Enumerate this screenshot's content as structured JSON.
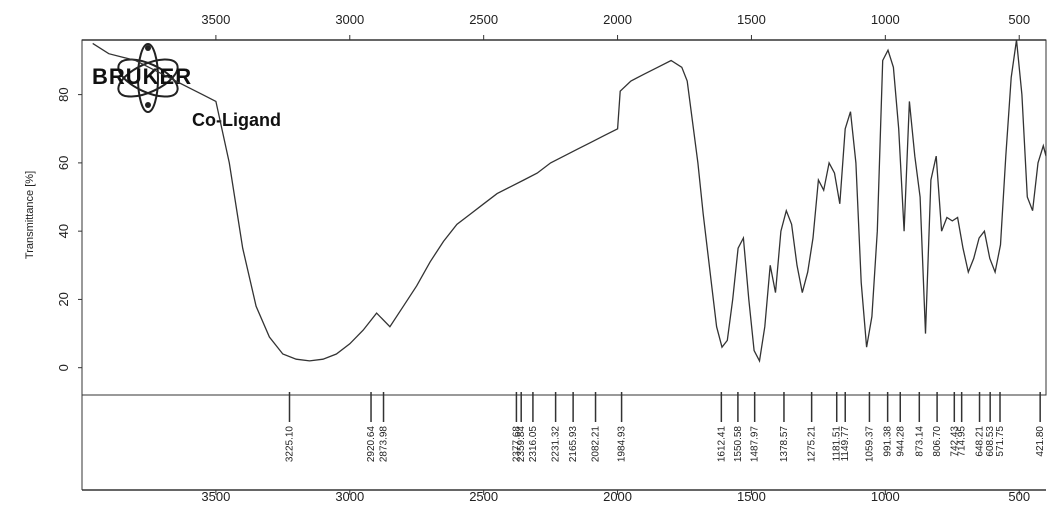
{
  "logo": {
    "text": "BRUKER"
  },
  "sample_label": "Co-Ligand",
  "chart_data": {
    "type": "line",
    "title": "",
    "xlabel": "",
    "ylabel": "Transmittance [%]",
    "x_reversed": true,
    "xlim": [
      4000,
      400
    ],
    "ylim": [
      -8,
      96
    ],
    "x_ticks_top": [
      "3500",
      "3000",
      "2500",
      "2000",
      "1500",
      "1000",
      "500"
    ],
    "x_ticks_bottom": [
      "3500",
      "3000",
      "2500",
      "2000",
      "1500",
      "1000",
      "500"
    ],
    "x_tick_values": [
      3500,
      3000,
      2500,
      2000,
      1500,
      1000,
      500
    ],
    "y_ticks": [
      "0",
      "20",
      "40",
      "60",
      "80"
    ],
    "y_tick_values": [
      0,
      20,
      40,
      60,
      80
    ],
    "series": [
      {
        "x": [
          3960,
          3900,
          3850,
          3800,
          3750,
          3700,
          3650,
          3600,
          3550,
          3500,
          3450,
          3400,
          3350,
          3300,
          3250,
          3200,
          3150,
          3100,
          3050,
          3000,
          2950,
          2900,
          2850,
          2800,
          2750,
          2700,
          2650,
          2600,
          2550,
          2500,
          2450,
          2400,
          2350,
          2300,
          2250,
          2200,
          2150,
          2100,
          2050,
          2000,
          1990,
          1950,
          1900,
          1850,
          1800,
          1760,
          1740,
          1700,
          1680,
          1650,
          1630,
          1610,
          1590,
          1570,
          1550,
          1530,
          1510,
          1490,
          1470,
          1450,
          1430,
          1410,
          1390,
          1370,
          1350,
          1330,
          1310,
          1290,
          1270,
          1250,
          1230,
          1210,
          1190,
          1170,
          1150,
          1130,
          1110,
          1090,
          1070,
          1050,
          1030,
          1010,
          990,
          970,
          950,
          930,
          910,
          890,
          870,
          850,
          830,
          810,
          790,
          770,
          750,
          730,
          710,
          690,
          670,
          650,
          630,
          610,
          590,
          570,
          550,
          530,
          510,
          490,
          470,
          450,
          430,
          410,
          400
        ],
        "y": [
          95,
          92,
          91,
          90,
          88,
          86,
          84,
          82,
          80,
          78,
          60,
          35,
          18,
          9,
          4,
          2.5,
          2,
          2.5,
          4,
          7,
          11,
          16,
          12,
          18,
          24,
          31,
          37,
          42,
          45,
          48,
          51,
          53,
          55,
          57,
          60,
          62,
          64,
          66,
          68,
          70,
          81,
          84,
          86,
          88,
          90,
          88,
          84,
          60,
          45,
          25,
          12,
          6,
          8,
          20,
          35,
          38,
          20,
          5,
          2,
          12,
          30,
          22,
          40,
          46,
          42,
          30,
          22,
          28,
          38,
          55,
          52,
          60,
          57,
          48,
          70,
          75,
          60,
          25,
          6,
          15,
          40,
          90,
          93,
          88,
          70,
          40,
          78,
          62,
          50,
          10,
          55,
          62,
          40,
          44,
          43,
          44,
          35,
          28,
          32,
          38,
          40,
          32,
          28,
          36,
          62,
          85,
          96,
          80,
          50,
          46,
          60,
          65,
          62
        ]
      }
    ],
    "peak_labels": [
      "3225.10",
      "2920.64",
      "2873.98",
      "2377.68",
      "2359.84",
      "2316.05",
      "2231.32",
      "2165.93",
      "2082.21",
      "1984.93",
      "1612.41",
      "1550.58",
      "1487.97",
      "1378.57",
      "1275.21",
      "1181.51",
      "1149.77",
      "1059.37",
      "991.38",
      "944.28",
      "873.14",
      "806.70",
      "742.43",
      "714.95",
      "648.21",
      "608.53",
      "571.75",
      "421.80"
    ],
    "peak_values": [
      3225.1,
      2920.64,
      2873.98,
      2377.68,
      2359.84,
      2316.05,
      2231.32,
      2165.93,
      2082.21,
      1984.93,
      1612.41,
      1550.58,
      1487.97,
      1378.57,
      1275.21,
      1181.51,
      1149.77,
      1059.37,
      991.38,
      944.28,
      873.14,
      806.7,
      742.43,
      714.95,
      648.21,
      608.53,
      571.75,
      421.8
    ],
    "grid": false,
    "legend": "none"
  }
}
